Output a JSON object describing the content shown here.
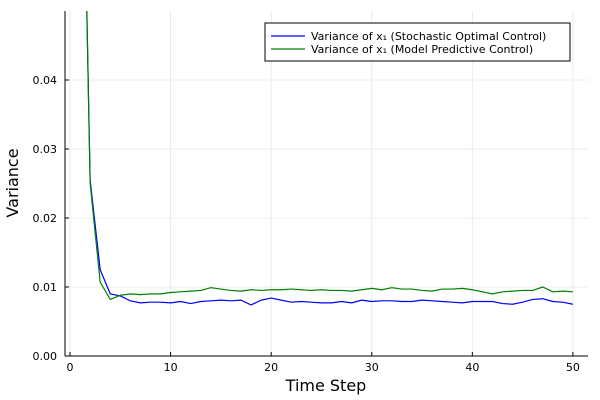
{
  "chart_data": {
    "type": "line",
    "xlabel": "Time Step",
    "ylabel": "Variance",
    "xlim": [
      -0.5,
      51.5
    ],
    "ylim": [
      0,
      0.05
    ],
    "xticks": [
      0,
      10,
      20,
      30,
      40,
      50
    ],
    "xtick_labels": [
      "0",
      "10",
      "20",
      "30",
      "40",
      "50"
    ],
    "yticks": [
      0,
      0.01,
      0.02,
      0.03,
      0.04
    ],
    "ytick_labels": [
      "0.00",
      "0.01",
      "0.02",
      "0.03",
      "0.04"
    ],
    "grid": true,
    "legend_position": "top-right",
    "x": [
      1,
      2,
      3,
      4,
      5,
      6,
      7,
      8,
      9,
      10,
      11,
      12,
      13,
      14,
      15,
      16,
      17,
      18,
      19,
      20,
      21,
      22,
      23,
      24,
      25,
      26,
      27,
      28,
      29,
      30,
      31,
      32,
      33,
      34,
      35,
      36,
      37,
      38,
      39,
      40,
      41,
      42,
      43,
      44,
      45,
      46,
      47,
      48,
      49,
      50
    ],
    "series": [
      {
        "name": "Variance of x₁ (Stochastic Optimal Control)",
        "color": "#0000ff",
        "values": [
          0.1,
          0.0255,
          0.0125,
          0.009,
          0.0087,
          0.008,
          0.0077,
          0.0078,
          0.0078,
          0.0077,
          0.0079,
          0.0076,
          0.0079,
          0.008,
          0.0081,
          0.008,
          0.0081,
          0.0074,
          0.0081,
          0.0084,
          0.0081,
          0.0078,
          0.0079,
          0.0078,
          0.0077,
          0.0077,
          0.0079,
          0.0077,
          0.0081,
          0.0079,
          0.008,
          0.008,
          0.0079,
          0.0079,
          0.0081,
          0.008,
          0.0079,
          0.0078,
          0.0077,
          0.0079,
          0.0079,
          0.0079,
          0.0076,
          0.0075,
          0.0078,
          0.0082,
          0.0083,
          0.0079,
          0.0078,
          0.0075
        ]
      },
      {
        "name": "Variance of x₁ (Model Predictive Control)",
        "color": "#008000",
        "values": [
          0.1,
          0.025,
          0.0107,
          0.0082,
          0.0088,
          0.009,
          0.0089,
          0.009,
          0.009,
          0.0092,
          0.0093,
          0.0094,
          0.0095,
          0.0099,
          0.0097,
          0.0095,
          0.0094,
          0.0096,
          0.0095,
          0.0096,
          0.0096,
          0.0097,
          0.0096,
          0.0095,
          0.0096,
          0.0095,
          0.0095,
          0.0094,
          0.0096,
          0.0098,
          0.0096,
          0.0099,
          0.0097,
          0.0097,
          0.0095,
          0.0094,
          0.0097,
          0.0097,
          0.0098,
          0.0096,
          0.0093,
          0.009,
          0.0093,
          0.0094,
          0.0095,
          0.0095,
          0.01,
          0.0093,
          0.0094,
          0.0093
        ]
      }
    ]
  }
}
